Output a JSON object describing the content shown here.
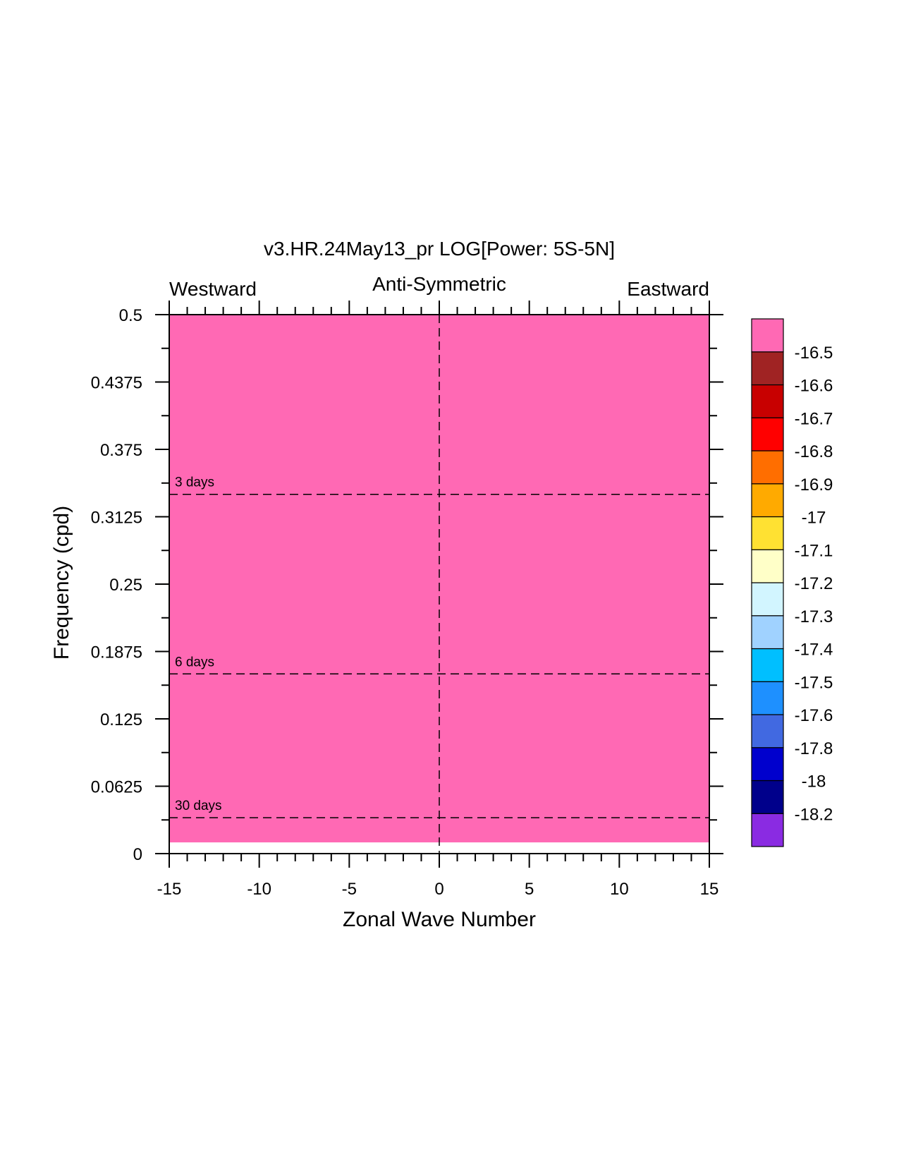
{
  "chart_data": {
    "type": "heatmap",
    "title": "v3.HR.24May13_pr LOG[Power: 5S-5N]",
    "subtitle_left": "Westward",
    "subtitle_center": "Anti-Symmetric",
    "subtitle_right": "Eastward",
    "xlabel": "Zonal Wave Number",
    "ylabel": "Frequency (cpd)",
    "xlim": [
      -15,
      15
    ],
    "ylim": [
      0,
      0.5
    ],
    "x_major_ticks": [
      -15,
      -10,
      -5,
      0,
      5,
      10,
      15
    ],
    "x_tick_labels": [
      "-15",
      "-10",
      "-5",
      "0",
      "5",
      "10",
      "15"
    ],
    "x_minor_step": 1,
    "y_major_ticks": [
      0,
      0.0625,
      0.125,
      0.1875,
      0.25,
      0.3125,
      0.375,
      0.4375,
      0.5
    ],
    "y_tick_labels": [
      "0",
      "0.0625",
      "0.125",
      "0.1875",
      "0.25",
      "0.3125",
      "0.375",
      "0.4375",
      "0.5"
    ],
    "y_minor_step": 0.03125,
    "field": {
      "x_range": [
        -15,
        15
      ],
      "y_range": [
        0.0104,
        0.5
      ],
      "value": "above -16.5",
      "color": "#ff69b4"
    },
    "period_lines": [
      {
        "label": "3 days",
        "frequency": 0.3333
      },
      {
        "label": "6 days",
        "frequency": 0.1667
      },
      {
        "label": "30 days",
        "frequency": 0.0333
      }
    ],
    "zero_line_x": 0,
    "colorbar": {
      "colors": [
        "#8a2be2",
        "#00008b",
        "#0000cd",
        "#4169e1",
        "#1e90ff",
        "#00bfff",
        "#a0d2ff",
        "#d2f5ff",
        "#ffffc8",
        "#ffe132",
        "#ffaa00",
        "#ff6e00",
        "#ff0000",
        "#c80000",
        "#a02323",
        "#ff69b4"
      ],
      "labels": [
        "-18.2",
        "-18",
        "-17.8",
        "-17.6",
        "-17.5",
        "-17.4",
        "-17.3",
        "-17.2",
        "-17.1",
        "-17",
        "-16.9",
        "-16.8",
        "-16.7",
        "-16.6",
        "-16.5"
      ]
    }
  }
}
